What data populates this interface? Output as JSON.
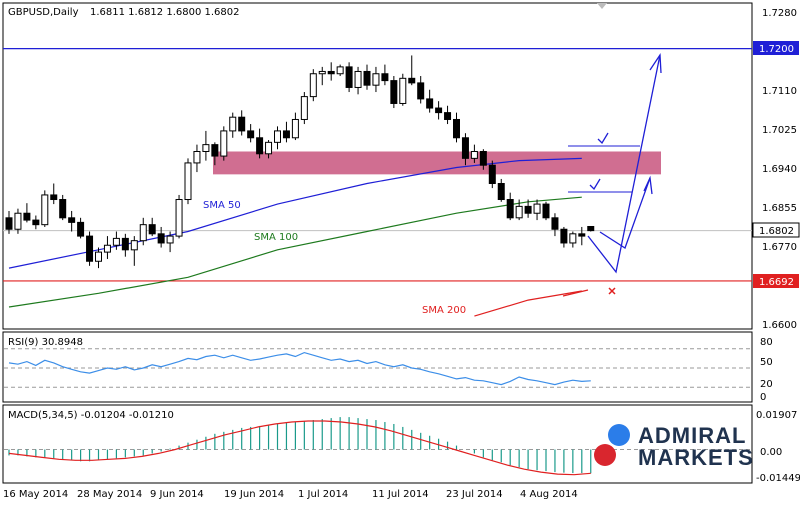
{
  "colors": {
    "bull_body": "#ffffff",
    "bear_body": "#000000",
    "sma50": "#1f1fd6",
    "sma100": "#1e7a1e",
    "sma200": "#e02020",
    "resistance": "#1f1fd6",
    "support": "#e02020",
    "zone": "#c8557e",
    "rsi_line": "#3c8ee8",
    "macd_hist": "#1a9a8a",
    "macd_signal": "#e02020",
    "brand_blue": "#2b7de9",
    "brand_red": "#d9262e",
    "brand_text": "#20334f"
  },
  "chart_data": [
    {
      "type": "line",
      "title": "GBPUSD,Daily",
      "ohlc_text": "1.6811 1.6812 1.6800 1.6802",
      "x_tick_labels": [
        "16 May 2014",
        "28 May 2014",
        "9 Jun 2014",
        "19 Jun 2014",
        "1 Jul 2014",
        "11 Jul 2014",
        "23 Jul 2014",
        "4 Aug 2014"
      ],
      "y_tick_labels": [
        "1.7280",
        "1.7110",
        "1.7025",
        "1.6940",
        "1.6855",
        "1.6770",
        "1.6600"
      ],
      "ylim": [
        1.66,
        1.728
      ],
      "current_price_label": "1.6802",
      "resistance_label": "1.7200",
      "support_label": "1.6692",
      "annotations": [
        "SMA 50",
        "SMA 100",
        "SMA 200"
      ],
      "candles_ohlc": [
        [
          1.683,
          1.6845,
          1.6795,
          1.6805
        ],
        [
          1.6805,
          1.685,
          1.6795,
          1.684
        ],
        [
          1.684,
          1.6862,
          1.682,
          1.6825
        ],
        [
          1.6825,
          1.6835,
          1.6805,
          1.6815
        ],
        [
          1.6815,
          1.689,
          1.681,
          1.688
        ],
        [
          1.688,
          1.6905,
          1.686,
          1.687
        ],
        [
          1.687,
          1.688,
          1.6825,
          1.683
        ],
        [
          1.683,
          1.6845,
          1.68,
          1.682
        ],
        [
          1.682,
          1.683,
          1.6785,
          1.679
        ],
        [
          1.679,
          1.68,
          1.6725,
          1.6735
        ],
        [
          1.6735,
          1.6765,
          1.672,
          1.6755
        ],
        [
          1.6755,
          1.679,
          1.674,
          1.677
        ],
        [
          1.677,
          1.68,
          1.676,
          1.6785
        ],
        [
          1.6785,
          1.6795,
          1.6745,
          1.676
        ],
        [
          1.676,
          1.679,
          1.6725,
          1.678
        ],
        [
          1.678,
          1.683,
          1.677,
          1.6815
        ],
        [
          1.6815,
          1.683,
          1.679,
          1.6795
        ],
        [
          1.6795,
          1.681,
          1.6765,
          1.6775
        ],
        [
          1.6775,
          1.68,
          1.6755,
          1.679
        ],
        [
          1.679,
          1.688,
          1.6785,
          1.687
        ],
        [
          1.687,
          1.696,
          1.686,
          1.695
        ],
        [
          1.695,
          1.699,
          1.693,
          1.6975
        ],
        [
          1.6975,
          1.702,
          1.6955,
          1.699
        ],
        [
          1.699,
          1.6995,
          1.6945,
          1.6965
        ],
        [
          1.6965,
          1.703,
          1.6955,
          1.702
        ],
        [
          1.702,
          1.706,
          1.7005,
          1.705
        ],
        [
          1.705,
          1.7065,
          1.701,
          1.702
        ],
        [
          1.702,
          1.7035,
          1.6995,
          1.7005
        ],
        [
          1.7005,
          1.7025,
          1.696,
          1.697
        ],
        [
          1.697,
          1.7,
          1.696,
          1.6995
        ],
        [
          1.6995,
          1.703,
          1.698,
          1.702
        ],
        [
          1.702,
          1.704,
          1.6995,
          1.7005
        ],
        [
          1.7005,
          1.706,
          1.7,
          1.7045
        ],
        [
          1.7045,
          1.7105,
          1.7035,
          1.7095
        ],
        [
          1.7095,
          1.7155,
          1.7085,
          1.7145
        ],
        [
          1.7145,
          1.716,
          1.712,
          1.715
        ],
        [
          1.715,
          1.717,
          1.713,
          1.7145
        ],
        [
          1.7145,
          1.7165,
          1.714,
          1.716
        ],
        [
          1.716,
          1.717,
          1.7105,
          1.7115
        ],
        [
          1.7115,
          1.716,
          1.71,
          1.715
        ],
        [
          1.715,
          1.7165,
          1.711,
          1.712
        ],
        [
          1.712,
          1.716,
          1.7105,
          1.7145
        ],
        [
          1.7145,
          1.7165,
          1.712,
          1.713
        ],
        [
          1.713,
          1.714,
          1.707,
          1.708
        ],
        [
          1.708,
          1.7145,
          1.7075,
          1.7135
        ],
        [
          1.7135,
          1.7185,
          1.712,
          1.7125
        ],
        [
          1.7125,
          1.714,
          1.708,
          1.709
        ],
        [
          1.709,
          1.711,
          1.706,
          1.707
        ],
        [
          1.707,
          1.7085,
          1.7045,
          1.706
        ],
        [
          1.706,
          1.7075,
          1.7035,
          1.7045
        ],
        [
          1.7045,
          1.706,
          1.6995,
          1.7005
        ],
        [
          1.7005,
          1.7015,
          1.6945,
          1.696
        ],
        [
          1.696,
          1.699,
          1.695,
          1.6975
        ],
        [
          1.6975,
          1.698,
          1.6935,
          1.6945
        ],
        [
          1.6945,
          1.6955,
          1.6895,
          1.6905
        ],
        [
          1.6905,
          1.6915,
          1.6865,
          1.687
        ],
        [
          1.687,
          1.6885,
          1.6825,
          1.683
        ],
        [
          1.683,
          1.687,
          1.6825,
          1.6855
        ],
        [
          1.6855,
          1.687,
          1.683,
          1.684
        ],
        [
          1.684,
          1.687,
          1.6825,
          1.686
        ],
        [
          1.686,
          1.6865,
          1.6825,
          1.683
        ],
        [
          1.683,
          1.684,
          1.679,
          1.6805
        ],
        [
          1.6805,
          1.681,
          1.6765,
          1.6775
        ],
        [
          1.6775,
          1.68,
          1.6765,
          1.6795
        ],
        [
          1.6795,
          1.681,
          1.677,
          1.679
        ],
        [
          1.6811,
          1.6812,
          1.68,
          1.6802
        ]
      ],
      "sma": [
        {
          "name": "SMA 50",
          "values": [
            [
              0,
              1.672
            ],
            [
              10,
              1.676
            ],
            [
              20,
              1.68
            ],
            [
              30,
              1.686
            ],
            [
              40,
              1.6905
            ],
            [
              50,
              1.694
            ],
            [
              57,
              1.6955
            ],
            [
              64,
              1.696
            ]
          ]
        },
        {
          "name": "SMA 100",
          "values": [
            [
              0,
              1.6635
            ],
            [
              10,
              1.6665
            ],
            [
              20,
              1.67
            ],
            [
              30,
              1.676
            ],
            [
              40,
              1.68
            ],
            [
              50,
              1.684
            ],
            [
              58,
              1.6865
            ],
            [
              64,
              1.6875
            ]
          ]
        },
        {
          "name": "SMA 200",
          "values": [
            [
              52,
              1.6615
            ],
            [
              58,
              1.665
            ],
            [
              64,
              1.667
            ]
          ]
        }
      ],
      "levels": {
        "resistance": 1.72,
        "support": 1.6692,
        "zone": [
          1.6925,
          1.6975
        ]
      }
    },
    {
      "type": "line",
      "title": "RSI(9) 30.8948",
      "y_tick_labels": [
        "80",
        "50",
        "20",
        "0"
      ],
      "ylim": [
        0,
        100
      ],
      "values": [
        58,
        56,
        60,
        54,
        62,
        58,
        52,
        48,
        44,
        42,
        46,
        50,
        48,
        52,
        47,
        50,
        55,
        52,
        56,
        60,
        65,
        63,
        68,
        70,
        66,
        70,
        66,
        62,
        64,
        67,
        70,
        72,
        68,
        74,
        70,
        66,
        62,
        64,
        60,
        62,
        57,
        60,
        55,
        52,
        55,
        50,
        48,
        44,
        41,
        37,
        33,
        35,
        31,
        30,
        27,
        24,
        29,
        36,
        32,
        30,
        27,
        24,
        28,
        31,
        29,
        30
      ]
    },
    {
      "type": "bar",
      "title": "MACD(5,34,5) -0.01204 -0.01210",
      "y_tick_labels": [
        "0.01907",
        "0.00",
        "-0.01449"
      ],
      "ylim": [
        -0.0145,
        0.0191
      ],
      "histogram": [
        -0.003,
        -0.003,
        -0.0035,
        -0.004,
        -0.004,
        -0.0045,
        -0.005,
        -0.0055,
        -0.006,
        -0.006,
        -0.0055,
        -0.005,
        -0.0045,
        -0.004,
        -0.0035,
        -0.003,
        -0.002,
        -0.001,
        0.0005,
        0.002,
        0.0035,
        0.005,
        0.0065,
        0.008,
        0.009,
        0.01,
        0.011,
        0.0115,
        0.012,
        0.0125,
        0.013,
        0.0135,
        0.014,
        0.0145,
        0.015,
        0.0155,
        0.016,
        0.0165,
        0.0165,
        0.016,
        0.0155,
        0.015,
        0.014,
        0.013,
        0.0115,
        0.01,
        0.0085,
        0.007,
        0.0055,
        0.004,
        0.002,
        0.0,
        -0.002,
        -0.004,
        -0.0055,
        -0.0065,
        -0.008,
        -0.009,
        -0.01,
        -0.0105,
        -0.011,
        -0.0115,
        -0.0118,
        -0.012,
        -0.012,
        -0.0121
      ],
      "signal": [
        -0.002,
        -0.003,
        -0.004,
        -0.005,
        -0.0055,
        -0.0055,
        -0.005,
        -0.0045,
        -0.0035,
        -0.002,
        0.0,
        0.0025,
        0.005,
        0.0075,
        0.0095,
        0.0115,
        0.013,
        0.014,
        0.0145,
        0.0145,
        0.014,
        0.013,
        0.0115,
        0.0095,
        0.007,
        0.0045,
        0.002,
        -0.0005,
        -0.003,
        -0.0055,
        -0.008,
        -0.01,
        -0.0115,
        -0.0125,
        -0.0128,
        -0.0121
      ]
    }
  ],
  "brand": {
    "line1": "ADMIRAL",
    "line2": "MARKETS"
  }
}
